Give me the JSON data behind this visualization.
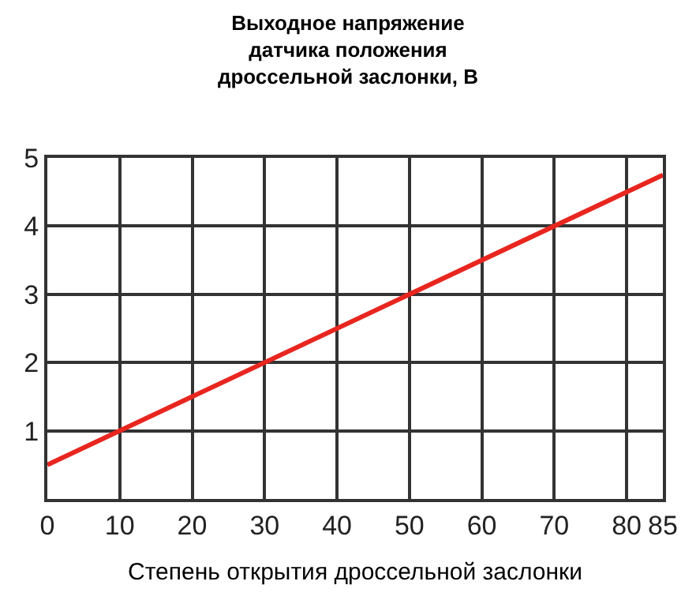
{
  "chart_data": {
    "type": "line",
    "title": "Выходное напряжение\nдатчика положения\nдроссельной заслонки, В",
    "xlabel": "Степень открытия дроссельной заслонки",
    "x": [
      0,
      85
    ],
    "series": [
      {
        "color": "#e8261f",
        "values": [
          0.5,
          4.75
        ]
      }
    ],
    "xlim": [
      0,
      85
    ],
    "ylim": [
      0,
      5
    ],
    "xticks": [
      0,
      10,
      20,
      30,
      40,
      50,
      60,
      70,
      80,
      85
    ],
    "yticks": [
      1,
      2,
      3,
      4,
      5
    ],
    "grid": true,
    "legend": false,
    "marker": "none",
    "line_style": "solid"
  }
}
